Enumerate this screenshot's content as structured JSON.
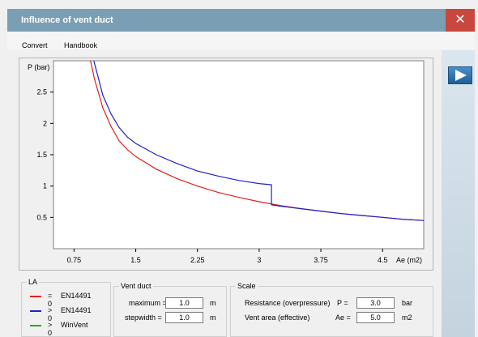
{
  "window": {
    "title": "Influence of vent duct",
    "close_glyph": "✕"
  },
  "menu": {
    "items": [
      "Convert",
      "Handbook"
    ]
  },
  "chart_data": {
    "type": "line",
    "ylabel": "P (bar)",
    "xlabel": "Ae (m2)",
    "xlim": [
      0.5,
      5.0
    ],
    "ylim": [
      0,
      3.0
    ],
    "x_ticks": [
      0.75,
      1.5,
      2.25,
      3,
      3.75,
      4.5
    ],
    "x_tick_labels": [
      "0.75",
      "1.5",
      "2.25",
      "3",
      "3.75",
      "4.5"
    ],
    "y_ticks": [
      0.5,
      1,
      1.5,
      2,
      2.5
    ],
    "y_tick_labels": [
      "0.5",
      "1",
      "1.5",
      "2",
      "2.5"
    ],
    "grid": false,
    "series": [
      {
        "color": "#e02020",
        "x": [
          0.95,
          1.0,
          1.1,
          1.2,
          1.3,
          1.4,
          1.5,
          1.75,
          2.0,
          2.25,
          2.5,
          2.75,
          3.0,
          3.25,
          3.5,
          3.75,
          4.0,
          4.25,
          4.5,
          4.75,
          5.0
        ],
        "y": [
          3.0,
          2.7,
          2.25,
          1.95,
          1.72,
          1.58,
          1.47,
          1.27,
          1.12,
          1.0,
          0.9,
          0.82,
          0.75,
          0.69,
          0.64,
          0.6,
          0.56,
          0.53,
          0.5,
          0.47,
          0.45
        ]
      },
      {
        "color": "#2020d0",
        "x": [
          0.99,
          1.05,
          1.1,
          1.2,
          1.3,
          1.4,
          1.5,
          1.75,
          2.0,
          2.25,
          2.5,
          2.75,
          3.0,
          3.15,
          3.15,
          3.25,
          3.5,
          3.75,
          4.0,
          4.25,
          4.5,
          4.75,
          5.0
        ],
        "y": [
          3.0,
          2.7,
          2.45,
          2.15,
          1.93,
          1.78,
          1.68,
          1.5,
          1.36,
          1.24,
          1.16,
          1.09,
          1.04,
          1.02,
          0.7,
          0.68,
          0.64,
          0.6,
          0.56,
          0.53,
          0.5,
          0.47,
          0.45
        ]
      }
    ]
  },
  "legend": {
    "title": "LA",
    "rows": [
      {
        "color": "#e02020",
        "op": "= 0",
        "text": "EN14491"
      },
      {
        "color": "#2020d0",
        "op": "> 0",
        "text": "EN14491"
      },
      {
        "color": "#20b020",
        "op": "> 0",
        "text": "WinVent"
      }
    ]
  },
  "vent_duct": {
    "title": "Vent duct",
    "maximum_label": "maximum =",
    "maximum_value": "1.0",
    "maximum_unit": "m",
    "stepwidth_label": "stepwidth =",
    "stepwidth_value": "1.0",
    "stepwidth_unit": "m"
  },
  "scale": {
    "title": "Scale",
    "resistance_label": "Resistance  (overpressure)",
    "p_label": "P =",
    "p_value": "3.0",
    "p_unit": "bar",
    "vent_area_label": "Vent area  (effective)",
    "ae_label": "Ae =",
    "ae_value": "5.0",
    "ae_unit": "m2"
  },
  "sidebar": {
    "play_icon": "play-icon"
  }
}
